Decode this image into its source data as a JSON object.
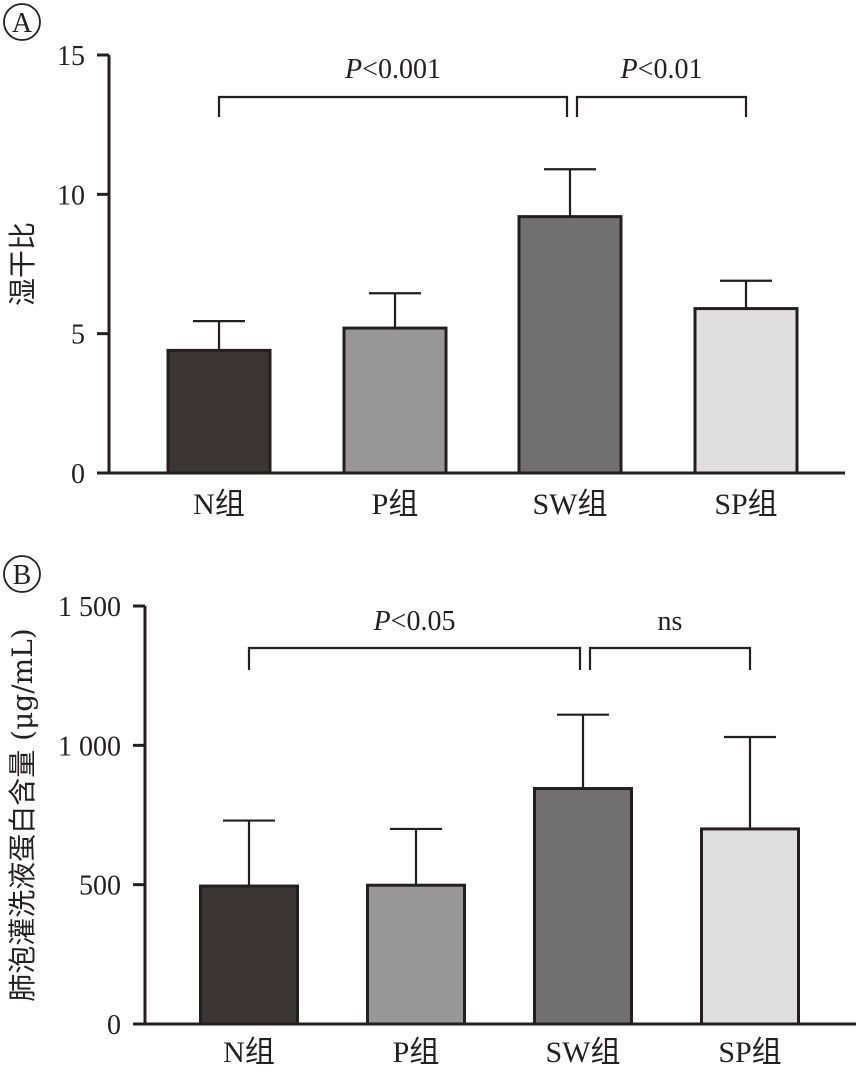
{
  "chart_data": [
    {
      "panel": "A",
      "type": "bar",
      "categories": [
        "N组",
        "P组",
        "SW组",
        "SP组"
      ],
      "values": [
        4.4,
        5.2,
        9.2,
        5.9
      ],
      "errors": [
        1.05,
        1.25,
        1.7,
        1.0
      ],
      "colors": [
        "#3b3635",
        "#979797",
        "#707070",
        "#dfdfdf"
      ],
      "ylabel": "湿干比",
      "yticks": [
        "0",
        "5",
        "10",
        "15"
      ],
      "ytick_values": [
        0,
        5,
        10,
        15
      ],
      "ylim": [
        0,
        15
      ],
      "grid": false,
      "brackets": [
        {
          "from": 0,
          "to": 2,
          "prefix": "P",
          "label": "<0.001"
        },
        {
          "from": 2,
          "to": 3,
          "prefix": "P",
          "label": "<0.01"
        }
      ]
    },
    {
      "panel": "B",
      "type": "bar",
      "categories": [
        "N组",
        "P组",
        "SW组",
        "SP组"
      ],
      "values": [
        495,
        498,
        845,
        700
      ],
      "errors": [
        235,
        202,
        265,
        330
      ],
      "colors": [
        "#3b3635",
        "#979797",
        "#707070",
        "#dfdfdf"
      ],
      "ylabel": "肺泡灌洗液蛋白含量 (μg/mL)",
      "yticks": [
        "0",
        "500",
        "1 000",
        "1 500"
      ],
      "ytick_values": [
        0,
        500,
        1000,
        1500
      ],
      "ylim": [
        0,
        1500
      ],
      "grid": false,
      "brackets": [
        {
          "from": 0,
          "to": 2,
          "prefix": "P",
          "label": "<0.05"
        },
        {
          "from": 2,
          "to": 3,
          "prefix": "",
          "label": "ns"
        }
      ]
    }
  ]
}
